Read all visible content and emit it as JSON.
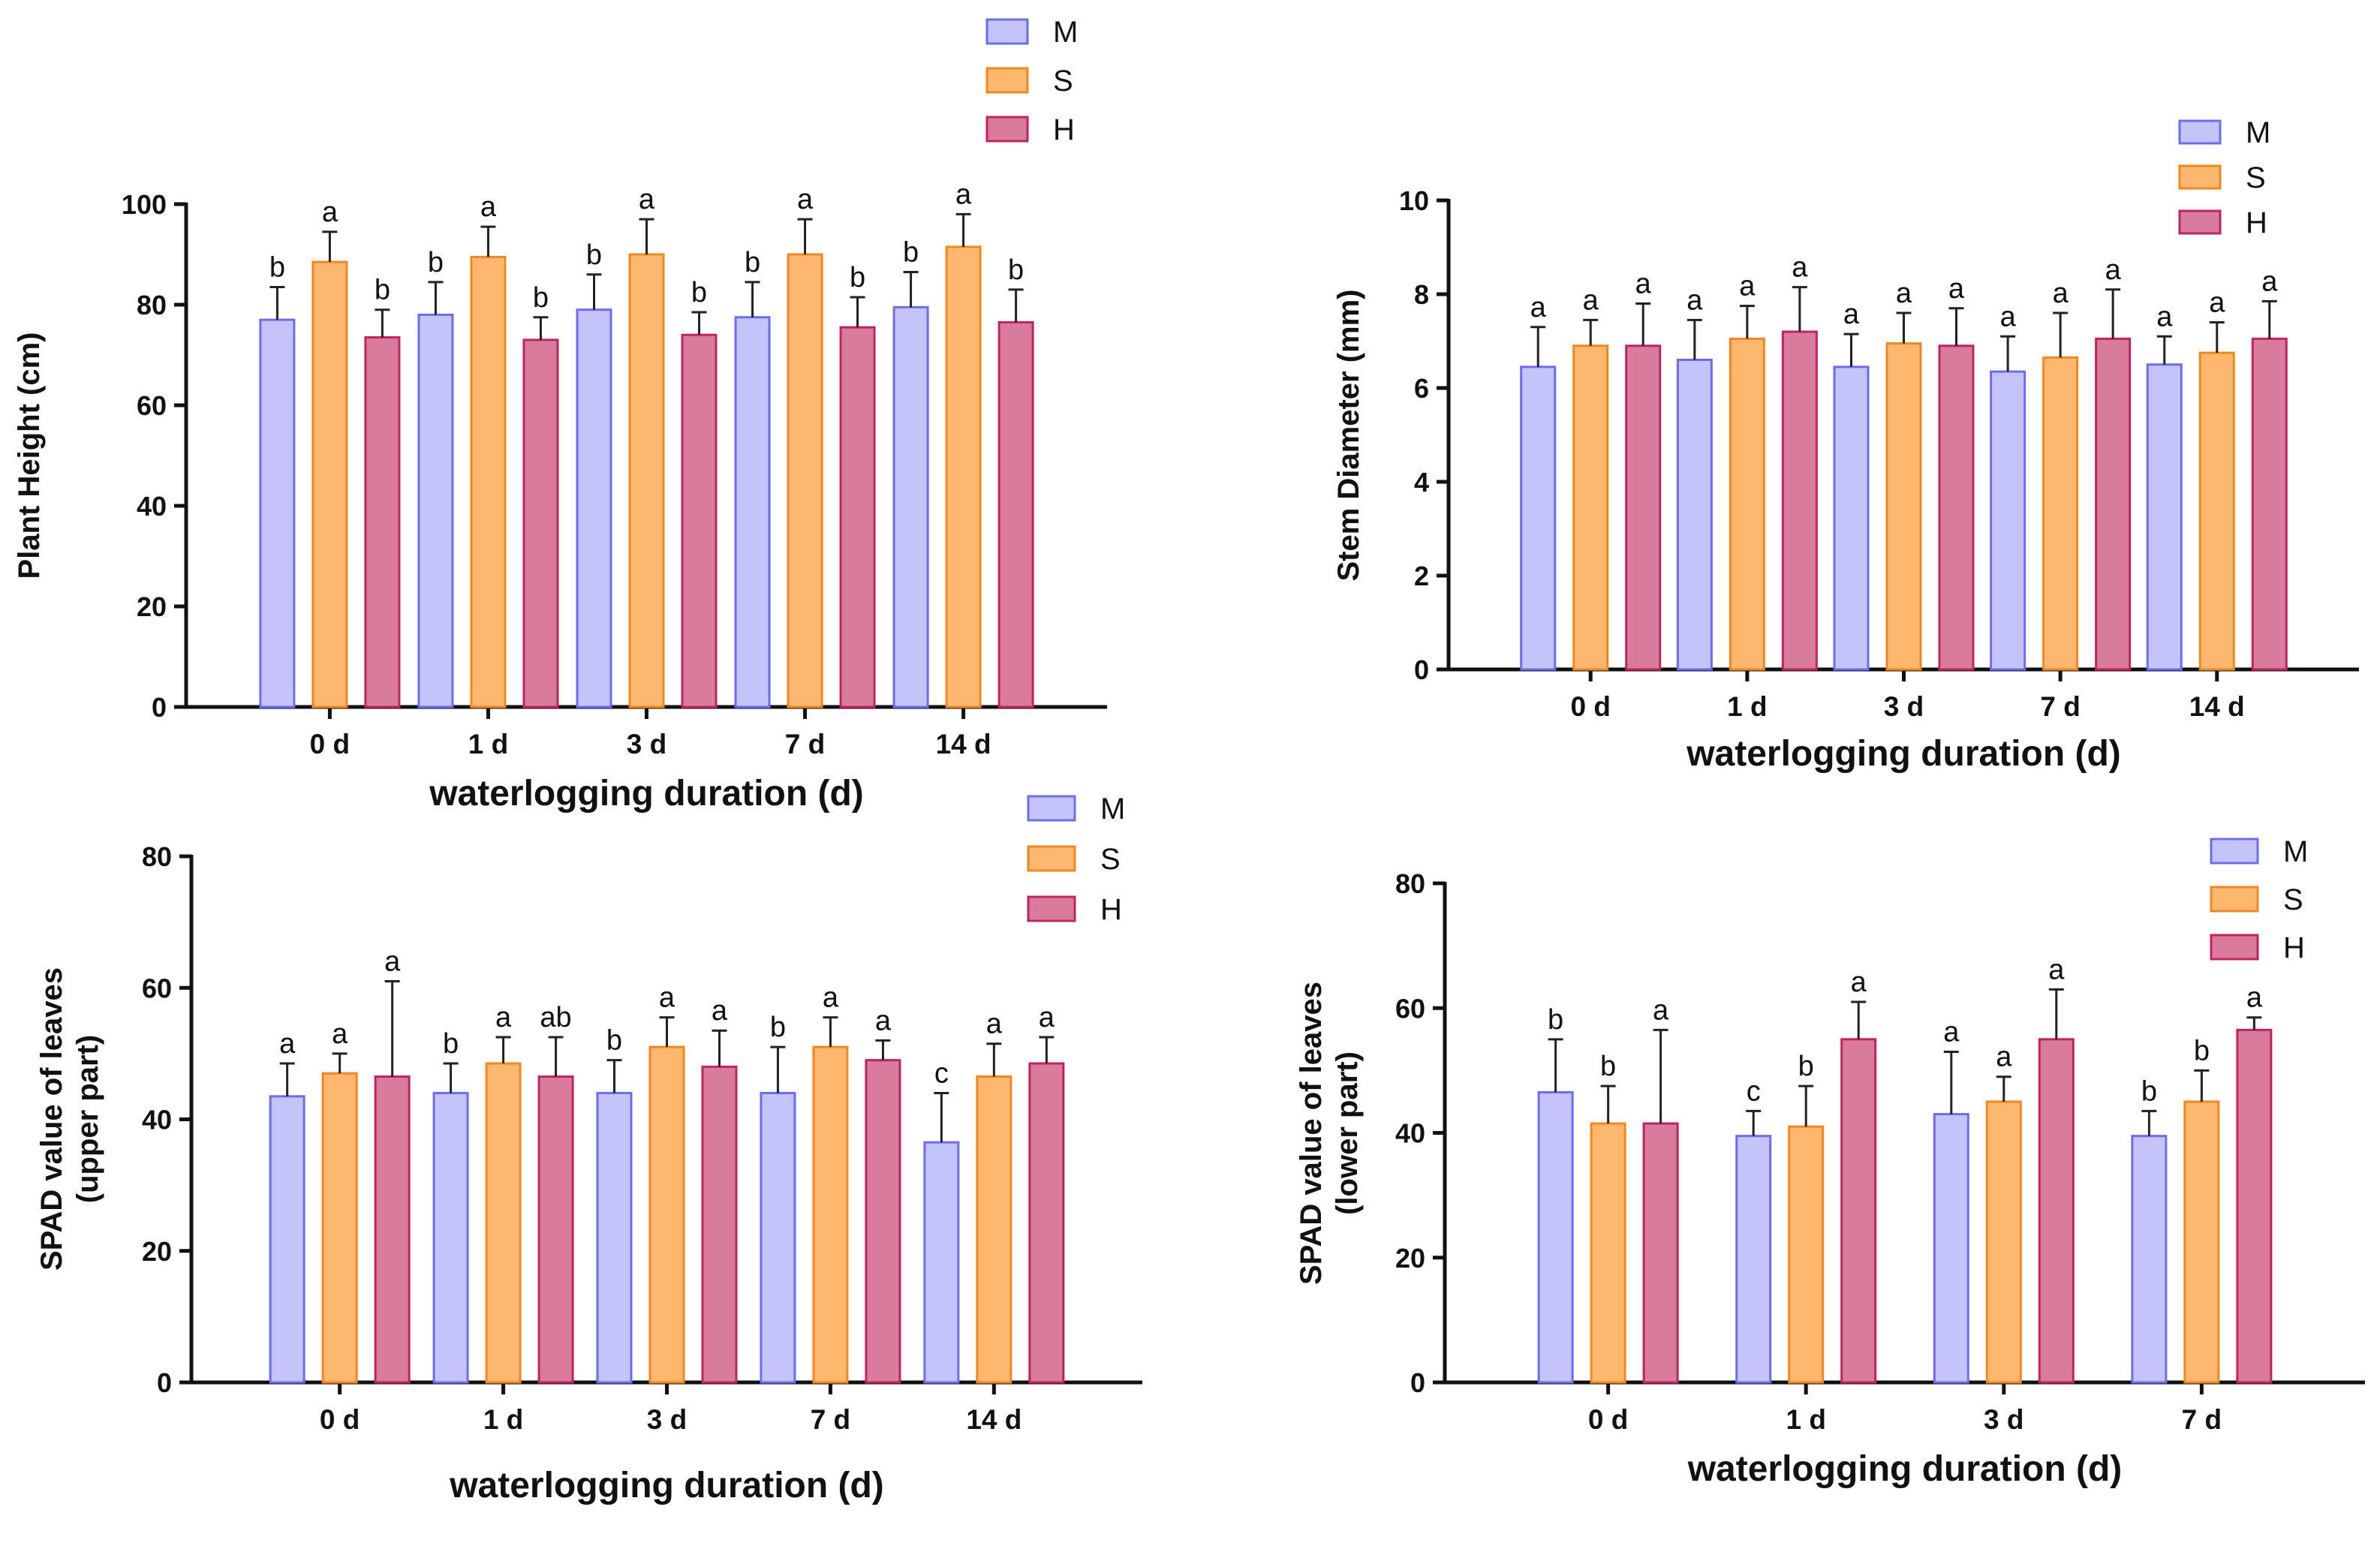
{
  "legend_colors": {
    "M": {
      "fill": "#c4c4fb",
      "stroke": "#6c6cf0"
    },
    "S": {
      "fill": "#fdb86f",
      "stroke": "#f2871f"
    },
    "H": {
      "fill": "#d97b9c",
      "stroke": "#c0245f"
    }
  },
  "chart_data": [
    {
      "id": "plant-height",
      "type": "bar",
      "ylabel": "Plant Height (cm)",
      "xlabel": "waterlogging duration (d)",
      "ylim": [
        0,
        100
      ],
      "yticks": [
        "0",
        "20",
        "40",
        "60",
        "80",
        "100"
      ],
      "categories": [
        "0 d",
        "1 d",
        "3 d",
        "7 d",
        "14 d"
      ],
      "legend": [
        "M",
        "S",
        "H"
      ],
      "series": [
        {
          "name": "M",
          "values": [
            77,
            78,
            79,
            77.5,
            79.5
          ],
          "errors": [
            6.5,
            6.5,
            7,
            7,
            7
          ],
          "letters": [
            "b",
            "b",
            "b",
            "b",
            "b"
          ]
        },
        {
          "name": "S",
          "values": [
            88.5,
            89.5,
            90,
            90,
            91.5
          ],
          "errors": [
            6,
            6,
            7,
            7,
            6.5
          ],
          "letters": [
            "a",
            "a",
            "a",
            "a",
            "a"
          ]
        },
        {
          "name": "H",
          "values": [
            73.5,
            73,
            74,
            75.5,
            76.5
          ],
          "errors": [
            5.5,
            4.5,
            4.5,
            6,
            6.5
          ],
          "letters": [
            "b",
            "b",
            "b",
            "b",
            "b"
          ]
        }
      ]
    },
    {
      "id": "stem-diameter",
      "type": "bar",
      "ylabel": "Stem Diameter (mm)",
      "xlabel": "waterlogging duration (d)",
      "ylim": [
        0,
        10
      ],
      "yticks": [
        "0",
        "2",
        "4",
        "6",
        "8",
        "10"
      ],
      "categories": [
        "0 d",
        "1 d",
        "3 d",
        "7 d",
        "14 d"
      ],
      "legend": [
        "M",
        "S",
        "H"
      ],
      "series": [
        {
          "name": "M",
          "values": [
            6.45,
            6.6,
            6.45,
            6.35,
            6.5
          ],
          "errors": [
            0.85,
            0.85,
            0.7,
            0.75,
            0.6
          ],
          "letters": [
            "a",
            "a",
            "a",
            "a",
            "a"
          ]
        },
        {
          "name": "S",
          "values": [
            6.9,
            7.05,
            6.95,
            6.65,
            6.75
          ],
          "errors": [
            0.55,
            0.7,
            0.65,
            0.95,
            0.65
          ],
          "letters": [
            "a",
            "a",
            "a",
            "a",
            "a"
          ]
        },
        {
          "name": "H",
          "values": [
            6.9,
            7.2,
            6.9,
            7.05,
            7.05
          ],
          "errors": [
            0.9,
            0.95,
            0.8,
            1.05,
            0.8
          ],
          "letters": [
            "a",
            "a",
            "a",
            "a",
            "a"
          ]
        }
      ]
    },
    {
      "id": "spad-upper",
      "type": "bar",
      "ylabel": "SPAD value of leaves (upper part)",
      "ylabel_lines": [
        "SPAD value of leaves",
        "(upper part)"
      ],
      "xlabel": "waterlogging duration (d)",
      "ylim": [
        0,
        80
      ],
      "yticks": [
        "0",
        "20",
        "40",
        "60",
        "80"
      ],
      "categories": [
        "0 d",
        "1 d",
        "3 d",
        "7 d",
        "14 d"
      ],
      "legend": [
        "M",
        "S",
        "H"
      ],
      "series": [
        {
          "name": "M",
          "values": [
            43.5,
            44,
            44,
            44,
            36.5
          ],
          "errors": [
            5,
            4.5,
            5,
            7,
            7.5
          ],
          "letters": [
            "a",
            "b",
            "b",
            "b",
            "c"
          ]
        },
        {
          "name": "S",
          "values": [
            47,
            48.5,
            51,
            51,
            46.5
          ],
          "errors": [
            3,
            4,
            4.5,
            4.5,
            5
          ],
          "letters": [
            "a",
            "a",
            "a",
            "a",
            "a"
          ]
        },
        {
          "name": "H",
          "values": [
            46.5,
            46.5,
            48,
            49,
            48.5
          ],
          "errors": [
            14.5,
            6,
            5.5,
            3,
            4
          ],
          "letters": [
            "a",
            "ab",
            "a",
            "a",
            "a"
          ]
        }
      ]
    },
    {
      "id": "spad-lower",
      "type": "bar",
      "ylabel": "SPAD value of leaves (lower part)",
      "ylabel_lines": [
        "SPAD value of leaves",
        "(lower part)"
      ],
      "xlabel": "waterlogging duration (d)",
      "ylim": [
        0,
        80
      ],
      "yticks": [
        "0",
        "20",
        "40",
        "60",
        "80"
      ],
      "categories": [
        "0 d",
        "1 d",
        "3 d",
        "7 d"
      ],
      "legend": [
        "M",
        "S",
        "H"
      ],
      "series": [
        {
          "name": "M",
          "values": [
            46.5,
            39.5,
            43,
            39.5
          ],
          "errors": [
            8.5,
            4,
            10,
            4
          ],
          "letters": [
            "b",
            "c",
            "a",
            "b"
          ]
        },
        {
          "name": "S",
          "values": [
            41.5,
            41,
            45,
            45
          ],
          "errors": [
            6,
            6.5,
            4,
            5
          ],
          "letters": [
            "b",
            "b",
            "a",
            "b"
          ]
        },
        {
          "name": "H",
          "values": [
            41.5,
            55,
            55,
            56.5
          ],
          "errors": [
            15,
            6,
            8,
            2
          ],
          "letters": [
            "a",
            "a",
            "a",
            "a"
          ]
        }
      ]
    }
  ]
}
